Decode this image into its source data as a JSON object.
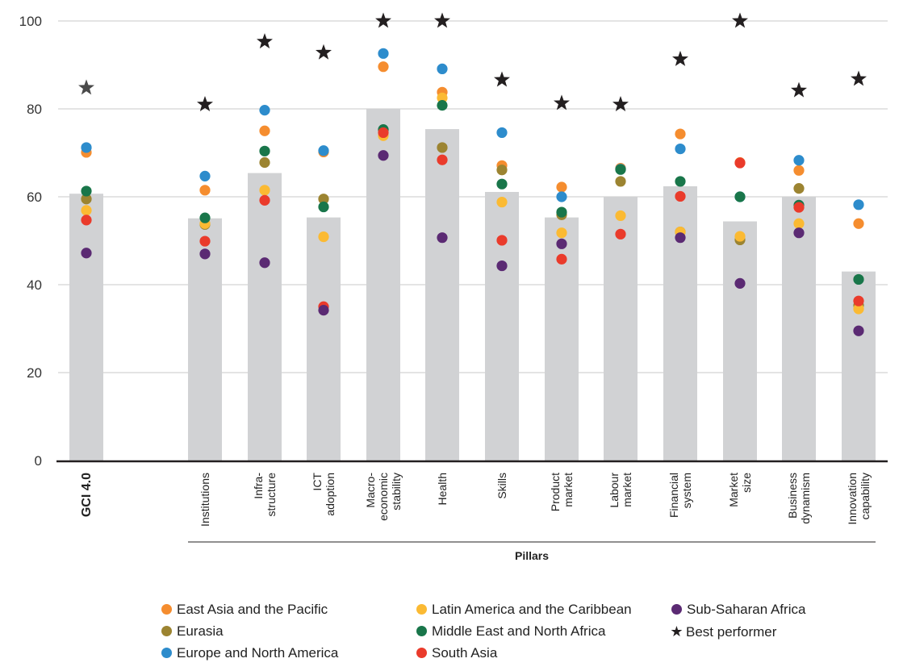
{
  "chart_data": {
    "type": "scatter",
    "subtype": "bar-with-dot-overlay",
    "xlabel": "Pillars",
    "ylim": [
      0,
      100
    ],
    "yticks": [
      0,
      20,
      40,
      60,
      80,
      100
    ],
    "grid": true,
    "legend_position": "bottom",
    "categories": [
      "GCI 4.0",
      "Institutions",
      "Infra-\nstructure",
      "ICT\nadoption",
      "Macro-\neconomic\nstability",
      "Health",
      "Skills",
      "Product\nmarket",
      "Labour\nmarket",
      "Financial\nsystem",
      "Market\nsize",
      "Business\ndynamism",
      "Innovation\ncapability"
    ],
    "bar_values": [
      60.7,
      55.1,
      65.4,
      55.3,
      80.0,
      75.4,
      61.1,
      55.3,
      60.0,
      62.4,
      54.4,
      60.0,
      43.0
    ],
    "best_performer": [
      84.8,
      81.0,
      95.3,
      92.8,
      100,
      100,
      86.6,
      81.3,
      81.0,
      91.3,
      100,
      84.2,
      86.8
    ],
    "series": [
      {
        "name": "East Asia and the Pacific",
        "color": "#f58d2f",
        "values": [
          70.1,
          61.5,
          75.0,
          70.2,
          89.6,
          83.8,
          67.1,
          62.2,
          66.5,
          74.3,
          67.8,
          66.0,
          53.9
        ]
      },
      {
        "name": "Eurasia",
        "color": "#9c8431",
        "values": [
          59.5,
          53.7,
          67.8,
          59.5,
          75.2,
          71.2,
          66.1,
          55.9,
          63.5,
          52.0,
          50.2,
          61.9,
          35.3
        ]
      },
      {
        "name": "Europe and North America",
        "color": "#2d8ccc",
        "values": [
          71.2,
          64.7,
          79.7,
          70.5,
          92.6,
          89.1,
          74.6,
          60.0,
          66.3,
          70.9,
          60.0,
          68.3,
          58.2
        ]
      },
      {
        "name": "Latin America and the Caribbean",
        "color": "#fbba33",
        "values": [
          56.9,
          53.9,
          61.5,
          50.9,
          73.9,
          82.5,
          58.8,
          51.8,
          55.7,
          52.0,
          51.0,
          53.9,
          34.5
        ]
      },
      {
        "name": "Middle East and North Africa",
        "color": "#19764a",
        "values": [
          61.3,
          55.2,
          70.4,
          57.7,
          75.3,
          80.8,
          62.9,
          56.5,
          66.2,
          63.5,
          60.0,
          58.1,
          41.2
        ]
      },
      {
        "name": "South Asia",
        "color": "#ea3b2b",
        "values": [
          54.7,
          49.9,
          59.2,
          35.0,
          74.6,
          68.4,
          50.1,
          45.8,
          51.5,
          60.1,
          67.7,
          57.6,
          36.3
        ]
      },
      {
        "name": "Sub-Saharan Africa",
        "color": "#5b2a73",
        "values": [
          47.2,
          47.0,
          45.0,
          34.2,
          69.4,
          50.7,
          44.3,
          49.3,
          null,
          50.7,
          40.3,
          51.8,
          29.5
        ]
      }
    ]
  },
  "legend": {
    "items": [
      {
        "label": "East Asia and the Pacific",
        "color": "#f58d2f"
      },
      {
        "label": "Eurasia",
        "color": "#9c8431"
      },
      {
        "label": "Europe and North America",
        "color": "#2d8ccc"
      },
      {
        "label": "Latin America and the Caribbean",
        "color": "#fbba33"
      },
      {
        "label": "Middle East and North Africa",
        "color": "#19764a"
      },
      {
        "label": "South Asia",
        "color": "#ea3b2b"
      },
      {
        "label": "Sub-Saharan Africa",
        "color": "#5b2a73"
      }
    ],
    "best_label": "Best performer"
  },
  "colors": {
    "bar": "#d1d2d4",
    "grid": "#c9c9c9",
    "axis": "#231f20",
    "star": "#231f20"
  }
}
